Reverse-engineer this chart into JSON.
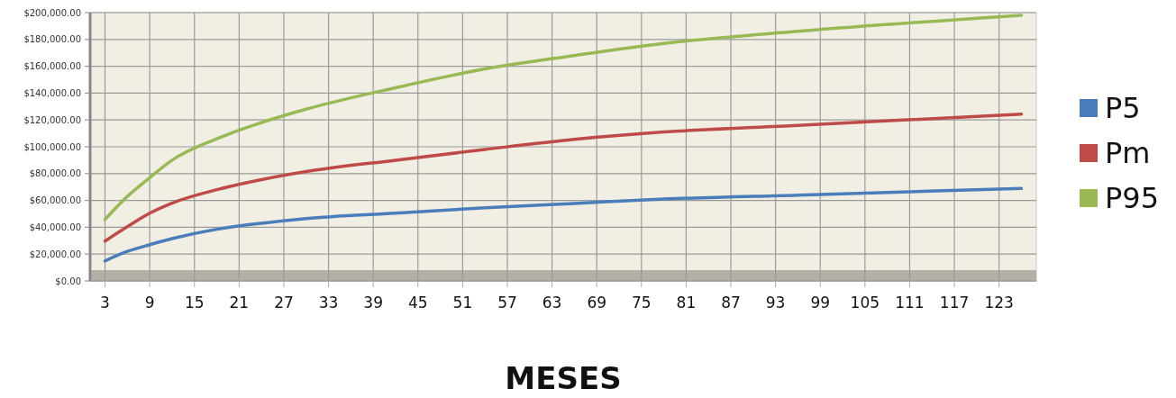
{
  "chart_data": {
    "type": "line",
    "xlabel": "MESES",
    "xlim": [
      1,
      128
    ],
    "xticks": [
      3,
      9,
      15,
      21,
      27,
      33,
      39,
      45,
      51,
      57,
      63,
      69,
      75,
      81,
      87,
      93,
      99,
      105,
      111,
      117,
      123
    ],
    "ylim": [
      0,
      200000
    ],
    "yticks": [
      {
        "value": 0,
        "label": "$0.00"
      },
      {
        "value": 20000,
        "label": "$20,000.00"
      },
      {
        "value": 40000,
        "label": "$40,000.00"
      },
      {
        "value": 60000,
        "label": "$60,000.00"
      },
      {
        "value": 80000,
        "label": "$80,000.00"
      },
      {
        "value": 100000,
        "label": "$100,000.00"
      },
      {
        "value": 120000,
        "label": "$120,000.00"
      },
      {
        "value": 140000,
        "label": "$140,000.00"
      },
      {
        "value": 160000,
        "label": "$160,000.00"
      },
      {
        "value": 180000,
        "label": "$180,000.00"
      },
      {
        "value": 200000,
        "label": "$200,000.00"
      }
    ],
    "grid": true,
    "legend": "right",
    "marker": "none",
    "line_style": "solid",
    "series": [
      {
        "name": "P5",
        "color": "#4a7ebb",
        "x": [
          3,
          6,
          9,
          12,
          18,
          24,
          30,
          42,
          54,
          66,
          78,
          96,
          126
        ],
        "values": [
          14900,
          22000,
          27000,
          31500,
          38500,
          43000,
          46500,
          50500,
          54500,
          57800,
          61000,
          64000,
          68900
        ]
      },
      {
        "name": "Pm",
        "color": "#be4b48",
        "x": [
          3,
          6,
          9,
          12,
          18,
          24,
          30,
          42,
          54,
          66,
          78,
          96,
          126
        ],
        "values": [
          29700,
          40500,
          50500,
          58000,
          68000,
          75500,
          81500,
          90000,
          98000,
          105500,
          111000,
          116000,
          124300
        ]
      },
      {
        "name": "P95",
        "color": "#98b954",
        "x": [
          3,
          6,
          9,
          12,
          18,
          24,
          30,
          42,
          54,
          66,
          78,
          96,
          126
        ],
        "values": [
          45900,
          63000,
          77000,
          90000,
          106000,
          118000,
          128000,
          144000,
          158000,
          168000,
          177000,
          186000,
          198000
        ]
      }
    ]
  }
}
